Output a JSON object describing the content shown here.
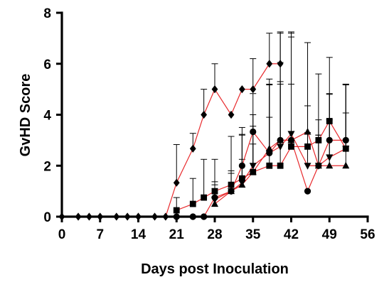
{
  "chart_data": {
    "type": "line",
    "xlabel": "Days post Inoculation",
    "ylabel": "GvHD Score",
    "xlim": [
      0,
      56
    ],
    "ylim": [
      0,
      8
    ],
    "xticks": [
      0,
      7,
      14,
      21,
      28,
      35,
      42,
      49,
      56
    ],
    "yticks": [
      0,
      2,
      4,
      6,
      8
    ],
    "line_color": "#e8292c",
    "marker_color": "#000000",
    "grid": false,
    "series": [
      {
        "marker": "diamond",
        "points": [
          [
            0,
            0
          ],
          [
            3,
            0
          ],
          [
            5,
            0
          ],
          [
            7,
            0
          ],
          [
            10,
            0
          ],
          [
            12,
            0
          ],
          [
            14,
            0
          ],
          [
            17,
            0
          ],
          [
            19,
            0
          ],
          [
            21,
            1.33
          ],
          [
            24,
            2.67
          ],
          [
            26,
            4
          ],
          [
            28,
            5
          ],
          [
            31,
            4
          ],
          [
            33,
            5
          ],
          [
            35,
            5
          ],
          [
            38,
            6
          ],
          [
            40,
            6
          ]
        ],
        "errors": [
          0,
          0,
          0,
          0,
          0,
          0,
          0,
          0,
          0,
          1.5,
          0.6,
          1.0,
          1.0,
          0,
          0,
          1.2,
          1.2,
          1.25
        ]
      },
      {
        "marker": "circle",
        "points": [
          [
            21,
            0
          ],
          [
            24,
            0
          ],
          [
            26,
            0
          ],
          [
            28,
            0.75
          ],
          [
            31,
            1.0
          ],
          [
            33,
            2.0
          ],
          [
            35,
            3.33
          ],
          [
            38,
            2.5
          ],
          [
            40,
            3.0
          ],
          [
            42,
            3.0
          ],
          [
            45,
            1.0
          ],
          [
            47,
            2.0
          ],
          [
            49,
            3.0
          ],
          [
            52,
            3.0
          ]
        ],
        "errors": [
          0,
          0,
          0,
          0.5,
          0.7,
          1.2,
          1.5,
          1.4,
          2.2,
          2.2,
          0,
          1.2,
          1.8,
          2.2
        ]
      },
      {
        "marker": "square",
        "points": [
          [
            21,
            0.25
          ],
          [
            24,
            0.5
          ],
          [
            26,
            0.75
          ],
          [
            28,
            1.0
          ],
          [
            31,
            1.25
          ],
          [
            33,
            1.5
          ],
          [
            35,
            1.75
          ],
          [
            38,
            2.0
          ],
          [
            40,
            2.0
          ],
          [
            42,
            2.75
          ],
          [
            45,
            2.75
          ],
          [
            47,
            3.0
          ],
          [
            49,
            3.75
          ],
          [
            52,
            2.67
          ]
        ],
        "errors": [
          0.5,
          1.0,
          1.5,
          1.25,
          1.9,
          2.0,
          1.1,
          3.4,
          3.3,
          4.3,
          1.6,
          2.6,
          2.5,
          2.5
        ]
      },
      {
        "marker": "triangle-down",
        "points": [
          [
            28,
            0.67
          ],
          [
            31,
            1.0
          ],
          [
            33,
            1.33
          ],
          [
            35,
            2.0
          ],
          [
            38,
            2.5
          ],
          [
            40,
            2.75
          ],
          [
            42,
            3.25
          ],
          [
            45,
            2.0
          ],
          [
            47,
            2.0
          ],
          [
            49,
            2.33
          ],
          [
            52,
            2.67
          ]
        ],
        "errors": [
          0.7,
          0.8,
          1.9,
          2.0,
          2.7,
          3.3,
          4.0,
          1.3,
          1.8,
          2.5,
          1.4
        ]
      },
      {
        "marker": "triangle-up",
        "points": [
          [
            28,
            0.5
          ],
          [
            31,
            1.0
          ],
          [
            33,
            1.25
          ],
          [
            35,
            1.75
          ],
          [
            38,
            2.67
          ],
          [
            40,
            3.0
          ],
          [
            42,
            3.0
          ],
          [
            45,
            3.33
          ],
          [
            47,
            2.0
          ],
          [
            49,
            2.0
          ],
          [
            52,
            2.0
          ]
        ],
        "errors": [
          0.6,
          0.7,
          1.0,
          1.8,
          2.5,
          4.2,
          4.2,
          3.5,
          1.2,
          1.8,
          3.2
        ]
      }
    ]
  }
}
